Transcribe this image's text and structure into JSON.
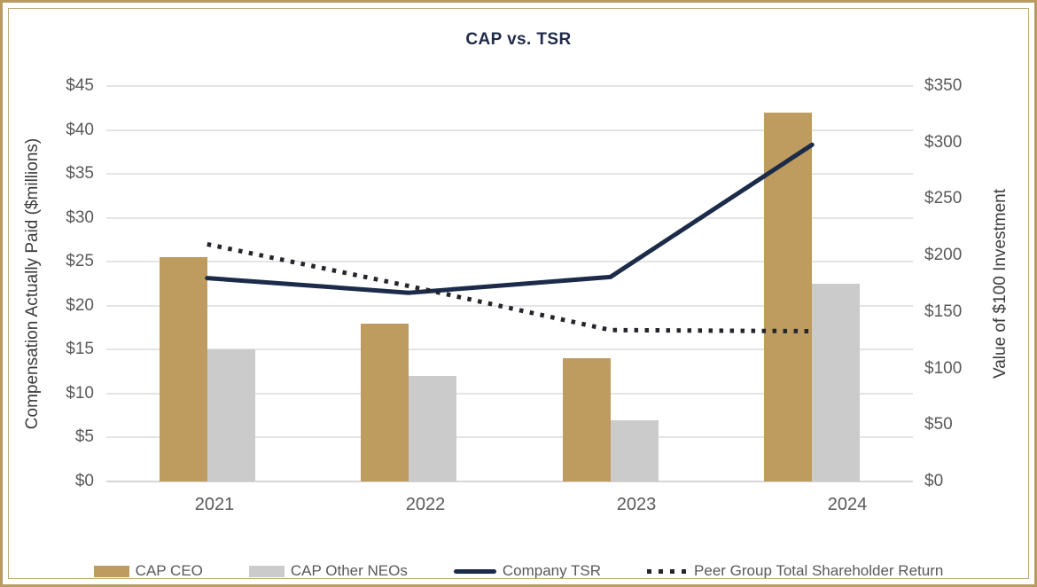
{
  "frame_color": "#b79b62",
  "chart_data": {
    "type": "bar+line combo",
    "title": "CAP vs. TSR",
    "categories": [
      "2021",
      "2022",
      "2023",
      "2024"
    ],
    "series": [
      {
        "name": "CAP CEO",
        "type": "bar",
        "axis": "left",
        "color": "#be9b5f",
        "values": [
          25.5,
          18,
          14,
          42
        ]
      },
      {
        "name": "CAP Other NEOs",
        "type": "bar",
        "axis": "left",
        "color": "#cbcbcb",
        "values": [
          15,
          12,
          7,
          22.5
        ]
      },
      {
        "name": "Company TSR",
        "type": "line",
        "line_style": "solid",
        "axis": "right",
        "color": "#1b2b49",
        "values": [
          180,
          167,
          181,
          298
        ]
      },
      {
        "name": "Peer Group Total Shareholder Return",
        "type": "line",
        "line_style": "dotted",
        "axis": "right",
        "color": "#24262b",
        "values": [
          210,
          173,
          134,
          133
        ]
      }
    ],
    "left_axis": {
      "label": "Compensation Actually Paid ($millions)",
      "min": 0,
      "max": 45,
      "step": 5,
      "tick_prefix": "$"
    },
    "right_axis": {
      "label": "Value of $100 Investment",
      "min": 0,
      "max": 350,
      "step": 50,
      "tick_prefix": "$"
    },
    "grid": true,
    "legend_position": "bottom"
  }
}
